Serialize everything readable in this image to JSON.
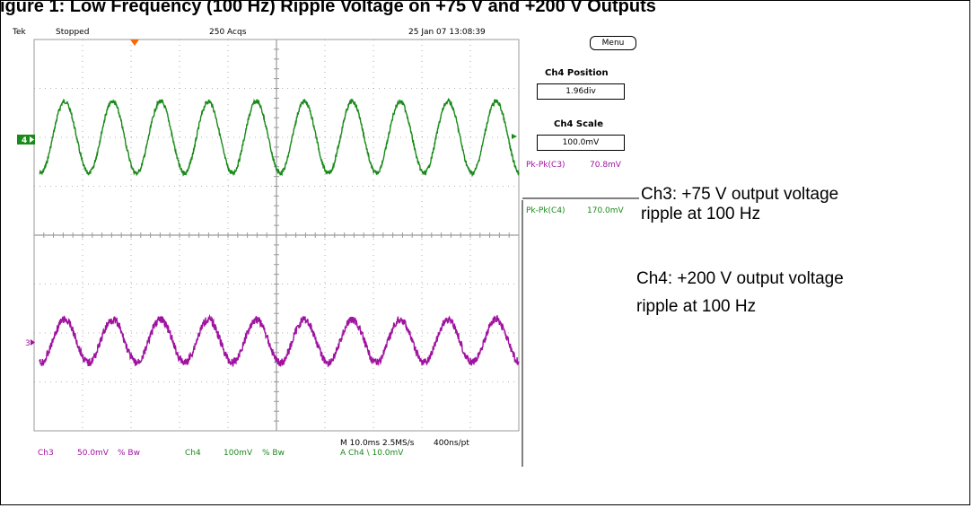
{
  "title": "igure 1: Low Frequency (100 Hz) Ripple Voltage on +75 V and +200 V Outputs",
  "scope": {
    "brand": "Tek",
    "state": "Stopped",
    "acqs": "250 Acqs",
    "timestamp": "25 Jan 07 13:08:39",
    "menu_label": "Menu",
    "ch4_position_label": "Ch4 Position",
    "ch4_position_value": "1.96div",
    "ch4_scale_label": "Ch4 Scale",
    "ch4_scale_value": "100.0mV",
    "meas1_label": "Pk-Pk(C3)",
    "meas1_value": "70.8mV",
    "meas2_label": "Pk-Pk(C4)",
    "meas2_value": "170.0mV",
    "ch4_marker": "4",
    "ch3_marker": "3",
    "bottom_ch3": "Ch3",
    "bottom_ch3_scale": "50.0mV",
    "bottom_ch3_bw": "% Bw",
    "bottom_ch4": "Ch4",
    "bottom_ch4_scale": "100mV",
    "bottom_ch4_bw": "% Bw",
    "timebase": "M 10.0ms 2.5MS/s",
    "record": "400ns/pt",
    "trigger": "A  Ch4  \\  10.0mV"
  },
  "annotations": {
    "ch3_line1": "Ch3: +75 V output voltage",
    "ch3_line2": "ripple at 100 Hz",
    "ch4_line1": "Ch4: +200 V output voltage",
    "ch4_line2": "ripple at 100 Hz"
  },
  "colors": {
    "ch4": "#1a8a1a",
    "ch3": "#a012a0",
    "grid": "#9a9a9a",
    "trigger": "#ff6600"
  },
  "chart_data": {
    "type": "line",
    "title": "",
    "xlabel": "",
    "ylabel": "",
    "xlim": [
      0,
      100
    ],
    "x_unit": "ms",
    "grid": true,
    "grid_divisions": [
      10,
      8
    ],
    "series": [
      {
        "name": "Ch4",
        "color": "#1a8a1a",
        "frequency_hz": 100,
        "peak_to_peak_mV": 170.0,
        "cycles": 10
      },
      {
        "name": "Ch3",
        "color": "#a012a0",
        "frequency_hz": 100,
        "peak_to_peak_mV": 70.8,
        "cycles": 10
      }
    ]
  }
}
